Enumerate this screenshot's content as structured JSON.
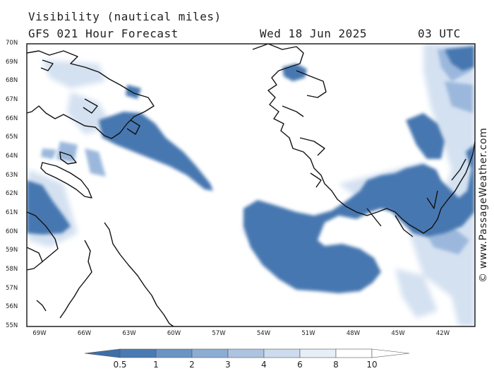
{
  "header": {
    "title": "Visibility (nautical miles)",
    "forecast": "GFS 021 Hour Forecast",
    "date": "Wed 18 Jun 2025",
    "time": "03 UTC"
  },
  "axes": {
    "latitudes": [
      "70N",
      "69N",
      "68N",
      "67N",
      "66N",
      "65N",
      "64N",
      "63N",
      "62N",
      "61N",
      "60N",
      "59N",
      "58N",
      "57N",
      "56N",
      "55N"
    ],
    "longitudes": [
      "69W",
      "66W",
      "63W",
      "60W",
      "57W",
      "54W",
      "51W",
      "48W",
      "45W",
      "42W"
    ]
  },
  "legend": {
    "labels": [
      "0.5",
      "1",
      "2",
      "3",
      "4",
      "6",
      "8",
      "10"
    ],
    "colors": [
      "#3f6fa8",
      "#4a7ab3",
      "#6a94c4",
      "#8cadd3",
      "#acc4e1",
      "#ccdbee",
      "#e6eef8",
      "#ffffff"
    ]
  },
  "credit": "© www.PassageWeather.com"
}
